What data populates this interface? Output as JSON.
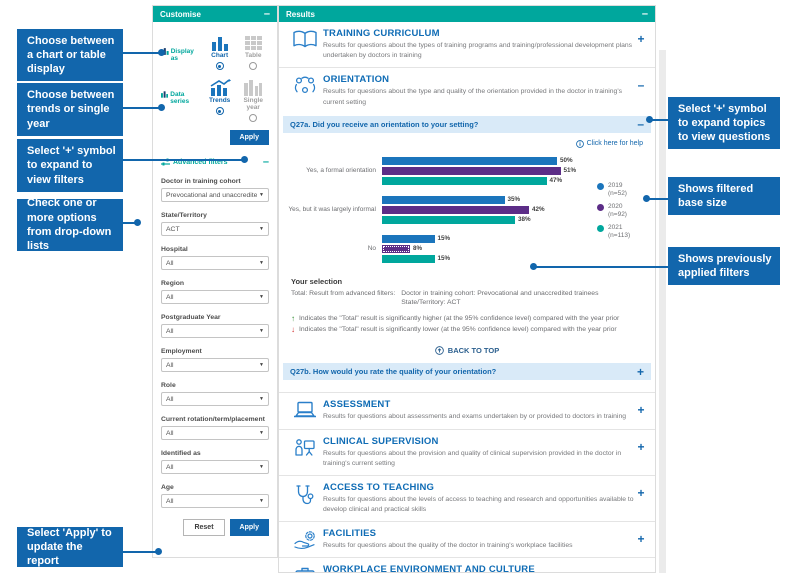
{
  "colors": {
    "teal": "#00a79d",
    "blue": "#1266ac",
    "section_title_blue": "#0f6cb5",
    "question_bar_bg": "#d9eaf8",
    "sig_higher_green": "#2e8b2e",
    "sig_lower_red": "#d12c2c"
  },
  "left_callouts": [
    {
      "text": "Choose between a chart or table display"
    },
    {
      "text": "Choose between trends or single year"
    },
    {
      "text": "Select '+' symbol to expand to view filters"
    },
    {
      "text": "Check one or more options from drop-down lists"
    },
    {
      "text": "Select 'Apply' to update the report"
    }
  ],
  "right_callouts": [
    {
      "text": "Select '+' symbol to expand topics to view questions"
    },
    {
      "text": "Shows filtered base size"
    },
    {
      "text": "Shows previously applied filters"
    }
  ],
  "customise": {
    "title": "Customise",
    "collapse_symbol": "–",
    "display_as": {
      "label": "Display as",
      "options": [
        {
          "label": "Chart",
          "selected": true
        },
        {
          "label": "Table",
          "selected": false
        }
      ]
    },
    "data_series": {
      "label": "Data series",
      "options": [
        {
          "label": "Trends",
          "selected": true
        },
        {
          "label": "Single year",
          "selected": false
        }
      ]
    },
    "apply_top_label": "Apply",
    "advanced_filters_label": "Advanced filters",
    "advanced_filters_collapse_symbol": "–",
    "filters": [
      {
        "label": "Doctor in training cohort",
        "value": "Prevocational and unaccredited tra"
      },
      {
        "label": "State/Territory",
        "value": "ACT"
      },
      {
        "label": "Hospital",
        "value": "All"
      },
      {
        "label": "Region",
        "value": "All"
      },
      {
        "label": "Postgraduate Year",
        "value": "All"
      },
      {
        "label": "Employment",
        "value": "All"
      },
      {
        "label": "Role",
        "value": "All"
      },
      {
        "label": "Current rotation/term/placement",
        "value": "All"
      },
      {
        "label": "Identified as",
        "value": "All"
      },
      {
        "label": "Age",
        "value": "All"
      }
    ],
    "reset_label": "Reset",
    "apply_bottom_label": "Apply"
  },
  "results": {
    "title": "Results",
    "collapse_symbol": "–",
    "sections": [
      {
        "title": "TRAINING CURRICULUM",
        "description": "Results for questions about the types of training programs and training/professional development plans undertaken by doctors in training",
        "toggle": "+"
      },
      {
        "title": "ORIENTATION",
        "description": "Results for questions about the type and quality of the orientation provided in the doctor in training's current setting",
        "toggle": "–"
      },
      {
        "title": "ASSESSMENT",
        "description": "Results for questions about assessments and exams undertaken by or provided to doctors in training",
        "toggle": "+"
      },
      {
        "title": "CLINICAL SUPERVISION",
        "description": "Results for questions about the provision and quality of clinical supervision provided in the doctor in training's current setting",
        "toggle": "+"
      },
      {
        "title": "ACCESS TO TEACHING",
        "description": "Results for questions about the levels of access to teaching and research and opportunities available to develop clinical and practical skills",
        "toggle": "+"
      },
      {
        "title": "FACILITIES",
        "description": "Results for questions about the quality of the doctor in training's workplace facilities",
        "toggle": "+"
      },
      {
        "title": "WORKPLACE ENVIRONMENT AND CULTURE",
        "description": "",
        "toggle": ""
      }
    ],
    "q27a": {
      "label": "Q27a. Did you receive an orientation to your setting?",
      "toggle": "–",
      "help_label": "Click here for help"
    },
    "q27b": {
      "label": "Q27b. How would you rate the quality of your orientation?",
      "toggle": "+"
    },
    "your_selection": {
      "heading": "Your selection",
      "prefix": "Total: Result from advanced filters:",
      "filters": [
        "Doctor in training cohort: Prevocational and unaccredited trainees",
        "State/Territory: ACT"
      ]
    },
    "footnotes": [
      {
        "symbol": "↑",
        "color": "#2e8b2e",
        "text": "Indicates the \"Total\" result is significantly higher (at the 95% confidence level) compared with the year prior"
      },
      {
        "symbol": "↓",
        "color": "#d12c2c",
        "text": "Indicates the \"Total\" result is significantly lower (at the 95% confidence level) compared with the year prior"
      }
    ],
    "back_to_top_label": "BACK TO TOP"
  },
  "chart_data": {
    "type": "bar",
    "orientation": "horizontal",
    "title": "Q27a. Did you receive an orientation to your setting?",
    "categories": [
      "Yes, a formal orientation",
      "Yes, but it was largely informal",
      "No"
    ],
    "series": [
      {
        "name": "2019",
        "base": "(n=52)",
        "color": "#1b75bc",
        "values": [
          50,
          35,
          15
        ]
      },
      {
        "name": "2020",
        "base": "(n=92)",
        "color": "#5c2d87",
        "values": [
          51,
          42,
          8
        ]
      },
      {
        "name": "2021",
        "base": "(n=113)",
        "color": "#00a79d",
        "values": [
          47,
          38,
          15
        ]
      }
    ],
    "value_suffix": "%",
    "xlim": [
      0,
      100
    ],
    "grid": false,
    "legend_position": "right",
    "significance_dotted": {
      "series_index": 1,
      "category_index": 2
    }
  }
}
